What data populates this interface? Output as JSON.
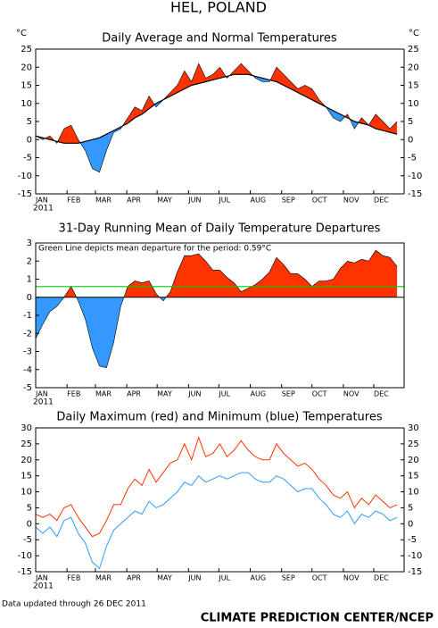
{
  "title": "HEL, POLAND",
  "footer_left": "Data updated through 26 DEC 2011",
  "footer_right": "CLIMATE PREDICTION CENTER/NCEP",
  "chart_data": [
    {
      "type": "band",
      "title": "Daily Average and Normal Temperatures",
      "y_unit": "°C",
      "x_year": "2011",
      "x": [
        1,
        8,
        15,
        22,
        29,
        36,
        43,
        50,
        57,
        64,
        71,
        78,
        85,
        92,
        99,
        106,
        113,
        120,
        127,
        134,
        141,
        148,
        155,
        162,
        169,
        176,
        183,
        190,
        197,
        204,
        211,
        218,
        225,
        232,
        239,
        246,
        253,
        260,
        267,
        274,
        281,
        288,
        295,
        302,
        309,
        316,
        323,
        330,
        337,
        344,
        351,
        358
      ],
      "values": [
        1,
        0,
        1,
        -1,
        3,
        4,
        0,
        -3,
        -8,
        -9,
        -3,
        2,
        3,
        6,
        9,
        8,
        12,
        9,
        11,
        13,
        15,
        19,
        16,
        21,
        17,
        18,
        20,
        17,
        19,
        21,
        19,
        17,
        16,
        16,
        20,
        18,
        16,
        14,
        15,
        14,
        11,
        9,
        6,
        5,
        7,
        3,
        6,
        4,
        7,
        5,
        3,
        5
      ],
      "normal": [
        1,
        0.5,
        0,
        -0.5,
        -1,
        -1,
        -1,
        -0.5,
        0,
        0.5,
        1.5,
        2.5,
        3.5,
        4.5,
        6,
        7,
        8.5,
        10,
        11,
        12,
        13,
        14,
        15,
        15.5,
        16,
        16.5,
        17,
        17.5,
        18,
        18,
        18,
        17.5,
        17,
        16.5,
        16,
        15,
        14,
        13,
        12,
        11,
        10,
        9,
        8,
        7,
        6,
        5,
        4.5,
        4,
        3,
        2.5,
        2,
        1.5
      ],
      "above_color": "#ff3300",
      "below_color": "#3399ff",
      "line_color": "#000000",
      "xlim": [
        1,
        365
      ],
      "xticks": [
        {
          "value": 1,
          "label": "JAN"
        },
        {
          "value": 32,
          "label": "FEB"
        },
        {
          "value": 60,
          "label": "MAR"
        },
        {
          "value": 91,
          "label": "APR"
        },
        {
          "value": 121,
          "label": "MAY"
        },
        {
          "value": 152,
          "label": "JUN"
        },
        {
          "value": 182,
          "label": "JUL"
        },
        {
          "value": 213,
          "label": "AUG"
        },
        {
          "value": 244,
          "label": "SEP"
        },
        {
          "value": 274,
          "label": "OCT"
        },
        {
          "value": 305,
          "label": "NOV"
        },
        {
          "value": 335,
          "label": "DEC"
        }
      ],
      "ylim": [
        -15,
        25
      ],
      "yticks": [
        -15,
        -10,
        -5,
        0,
        5,
        10,
        15,
        20,
        25
      ],
      "mirror_y": true
    },
    {
      "type": "area",
      "title": "31-Day Running Mean of Daily Temperature Departures",
      "annotation": "Green Line depicts mean departure for the period: 0.59°C",
      "x": [
        1,
        8,
        15,
        22,
        29,
        36,
        43,
        50,
        57,
        64,
        71,
        78,
        85,
        92,
        99,
        106,
        113,
        120,
        127,
        134,
        141,
        148,
        155,
        162,
        169,
        176,
        183,
        190,
        197,
        204,
        211,
        218,
        225,
        232,
        239,
        246,
        253,
        260,
        267,
        274,
        281,
        288,
        295,
        302,
        309,
        316,
        323,
        330,
        337,
        344,
        351,
        358
      ],
      "values": [
        -2.3,
        -1.5,
        -0.8,
        -0.5,
        0,
        0.6,
        -0.2,
        -1.2,
        -2.8,
        -3.8,
        -3.9,
        -2.5,
        -0.5,
        0.6,
        0.9,
        0.8,
        0.9,
        0.2,
        -0.2,
        0.3,
        1.4,
        2.3,
        2.3,
        2.4,
        2.0,
        1.5,
        1.5,
        1.1,
        0.8,
        0.3,
        0.5,
        0.7,
        1.0,
        1.4,
        2.2,
        1.8,
        1.3,
        1.3,
        1.0,
        0.6,
        0.9,
        0.9,
        1.0,
        1.6,
        2.0,
        1.9,
        2.1,
        2.0,
        2.6,
        2.3,
        2.2,
        1.7
      ],
      "above_color": "#ff3300",
      "below_color": "#3399ff",
      "line_color": "#000000",
      "reference_line": {
        "value": 0.59,
        "color": "#00cc00"
      },
      "x_year": "2011",
      "xlim": [
        1,
        365
      ],
      "xticks": [
        {
          "value": 1,
          "label": "JAN"
        },
        {
          "value": 32,
          "label": "FEB"
        },
        {
          "value": 60,
          "label": "MAR"
        },
        {
          "value": 91,
          "label": "APR"
        },
        {
          "value": 121,
          "label": "MAY"
        },
        {
          "value": 152,
          "label": "JUN"
        },
        {
          "value": 182,
          "label": "JUL"
        },
        {
          "value": 213,
          "label": "AUG"
        },
        {
          "value": 244,
          "label": "SEP"
        },
        {
          "value": 274,
          "label": "OCT"
        },
        {
          "value": 305,
          "label": "NOV"
        },
        {
          "value": 335,
          "label": "DEC"
        }
      ],
      "ylim": [
        -5,
        3
      ],
      "yticks": [
        -5,
        -4,
        -3,
        -2,
        -1,
        0,
        1,
        2,
        3
      ],
      "mirror_y": false
    },
    {
      "type": "line",
      "title": "Daily Maximum (red) and Minimum (blue) Temperatures",
      "x_year": "2011",
      "x": [
        1,
        8,
        15,
        22,
        29,
        36,
        43,
        50,
        57,
        64,
        71,
        78,
        85,
        92,
        99,
        106,
        113,
        120,
        127,
        134,
        141,
        148,
        155,
        162,
        169,
        176,
        183,
        190,
        197,
        204,
        211,
        218,
        225,
        232,
        239,
        246,
        253,
        260,
        267,
        274,
        281,
        288,
        295,
        302,
        309,
        316,
        323,
        330,
        337,
        344,
        351,
        358
      ],
      "series": [
        {
          "color": "#ff3300",
          "values": [
            3,
            2,
            3,
            1,
            5,
            6,
            2,
            -1,
            -4,
            -3,
            1,
            6,
            6,
            11,
            14,
            12,
            17,
            13,
            16,
            19,
            20,
            25,
            20,
            27,
            21,
            22,
            25,
            21,
            23,
            26,
            23,
            21,
            20,
            20,
            25,
            22,
            20,
            18,
            19,
            17,
            14,
            12,
            9,
            8,
            10,
            5,
            8,
            6,
            9,
            7,
            5,
            6
          ]
        },
        {
          "color": "#3399ff",
          "values": [
            -1,
            -3,
            -1,
            -4,
            1,
            2,
            -3,
            -6,
            -12,
            -14,
            -7,
            -2,
            0,
            2,
            4,
            3,
            7,
            5,
            6,
            8,
            10,
            13,
            12,
            15,
            13,
            14,
            15,
            14,
            15,
            16,
            16,
            14,
            13,
            13,
            15,
            14,
            12,
            10,
            11,
            11,
            8,
            6,
            3,
            2,
            4,
            0,
            3,
            2,
            4,
            3,
            1,
            2
          ]
        }
      ],
      "xlim": [
        1,
        365
      ],
      "xticks": [
        {
          "value": 1,
          "label": "JAN"
        },
        {
          "value": 32,
          "label": "FEB"
        },
        {
          "value": 60,
          "label": "MAR"
        },
        {
          "value": 91,
          "label": "APR"
        },
        {
          "value": 121,
          "label": "MAY"
        },
        {
          "value": 152,
          "label": "JUN"
        },
        {
          "value": 182,
          "label": "JUL"
        },
        {
          "value": 213,
          "label": "AUG"
        },
        {
          "value": 244,
          "label": "SEP"
        },
        {
          "value": 274,
          "label": "OCT"
        },
        {
          "value": 305,
          "label": "NOV"
        },
        {
          "value": 335,
          "label": "DEC"
        }
      ],
      "ylim": [
        -15,
        30
      ],
      "yticks": [
        -15,
        -10,
        -5,
        0,
        5,
        10,
        15,
        20,
        25,
        30
      ],
      "mirror_y": true
    }
  ]
}
